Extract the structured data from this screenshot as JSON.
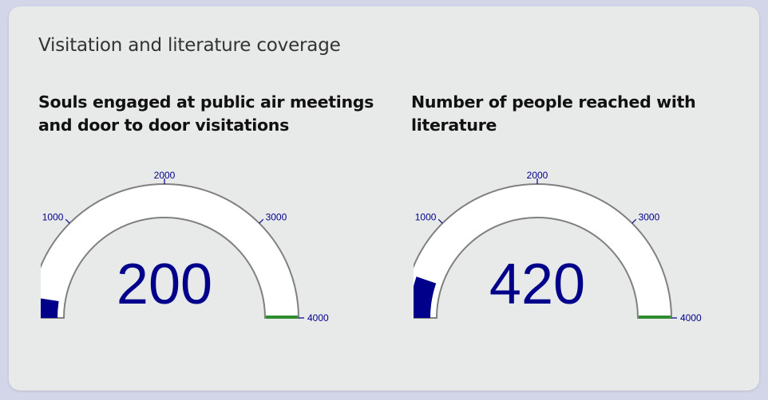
{
  "card": {
    "title": "Visitation and literature coverage"
  },
  "gauges": [
    {
      "title": "Souls engaged at public air meetings and door to door visitations"
    },
    {
      "title": "Number of people reached with literature"
    }
  ],
  "chart_data": [
    {
      "type": "gauge",
      "title": "Souls engaged at public air meetings and door to door visitations",
      "value": 200,
      "range": [
        0,
        4000
      ],
      "ticks": [
        0,
        1000,
        2000,
        3000,
        4000
      ],
      "threshold": 4000,
      "colors": {
        "bar": "#00008b",
        "background": "#ffffff",
        "border": "#808080",
        "threshold": "#2e8b2e",
        "ticks": "#00008b"
      }
    },
    {
      "type": "gauge",
      "title": "Number of people reached with literature",
      "value": 420,
      "range": [
        0,
        4000
      ],
      "ticks": [
        0,
        1000,
        2000,
        3000,
        4000
      ],
      "threshold": 4000,
      "colors": {
        "bar": "#00008b",
        "background": "#ffffff",
        "border": "#808080",
        "threshold": "#2e8b2e",
        "ticks": "#00008b"
      }
    }
  ]
}
